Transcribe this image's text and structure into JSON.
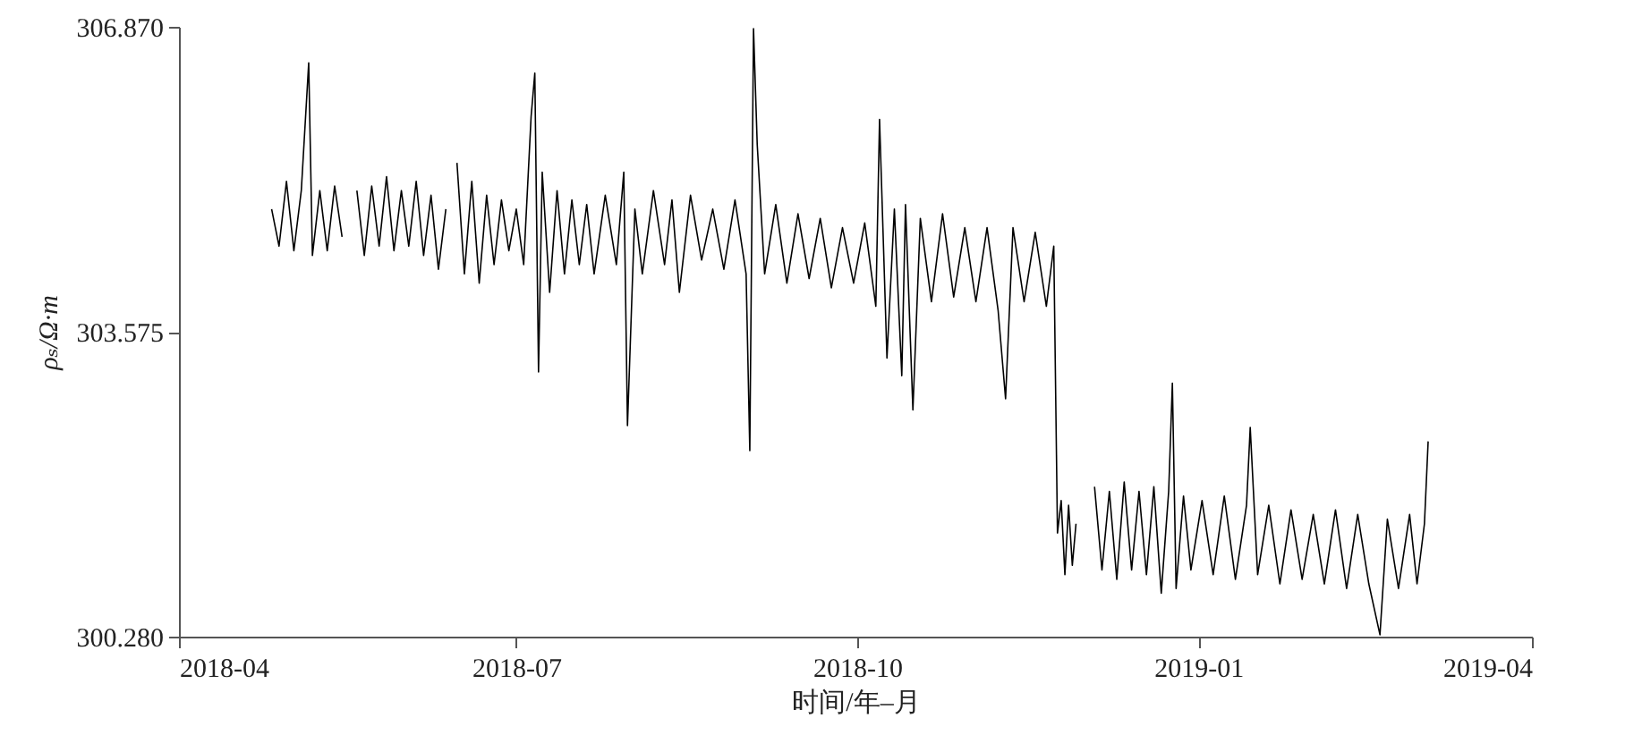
{
  "chart_data": {
    "type": "line",
    "xlabel": "时间/年–月",
    "ylabel": "ρₛ/Ω·m",
    "xlim": [
      "2018-04-01",
      "2019-04-01"
    ],
    "xticks": [
      "2018-04",
      "2018-07",
      "2018-10",
      "2019-01",
      "2019-04"
    ],
    "ylim": [
      300.28,
      306.87
    ],
    "yticks": [
      {
        "value": 300.28,
        "label": "300.280"
      },
      {
        "value": 303.575,
        "label": "303.575"
      },
      {
        "value": 306.87,
        "label": "306.870"
      }
    ],
    "grid": false,
    "marker": "none",
    "line_style": "solid",
    "series": [
      {
        "color": "#000000",
        "x": [
          "2018-04-26",
          "2018-04-28",
          "2018-04-30",
          "2018-05-02",
          "2018-05-04",
          "2018-05-06",
          "2018-05-07",
          "2018-05-09",
          "2018-05-11",
          "2018-05-13",
          "2018-05-15",
          "2018-05-17",
          "2018-05-19",
          "2018-05-21",
          "2018-05-23",
          "2018-05-25",
          "2018-05-27",
          "2018-05-29",
          "2018-05-31",
          "2018-06-02",
          "2018-06-04",
          "2018-06-06",
          "2018-06-08",
          "2018-06-10",
          "2018-06-12",
          "2018-06-13",
          "2018-06-15",
          "2018-06-17",
          "2018-06-19",
          "2018-06-21",
          "2018-06-23",
          "2018-06-25",
          "2018-06-27",
          "2018-06-29",
          "2018-07-01",
          "2018-07-03",
          "2018-07-05",
          "2018-07-06",
          "2018-07-07",
          "2018-07-08",
          "2018-07-10",
          "2018-07-12",
          "2018-07-14",
          "2018-07-16",
          "2018-07-18",
          "2018-07-20",
          "2018-07-22",
          "2018-07-25",
          "2018-07-28",
          "2018-07-30",
          "2018-07-31",
          "2018-08-02",
          "2018-08-04",
          "2018-08-07",
          "2018-08-10",
          "2018-08-12",
          "2018-08-14",
          "2018-08-17",
          "2018-08-20",
          "2018-08-23",
          "2018-08-26",
          "2018-08-29",
          "2018-09-01",
          "2018-09-02",
          "2018-09-03",
          "2018-09-04",
          "2018-09-06",
          "2018-09-09",
          "2018-09-12",
          "2018-09-15",
          "2018-09-18",
          "2018-09-21",
          "2018-09-24",
          "2018-09-27",
          "2018-09-30",
          "2018-10-03",
          "2018-10-06",
          "2018-10-07",
          "2018-10-09",
          "2018-10-11",
          "2018-10-13",
          "2018-10-14",
          "2018-10-16",
          "2018-10-18",
          "2018-10-21",
          "2018-10-24",
          "2018-10-27",
          "2018-10-30",
          "2018-11-02",
          "2018-11-05",
          "2018-11-08",
          "2018-11-10",
          "2018-11-12",
          "2018-11-15",
          "2018-11-18",
          "2018-11-21",
          "2018-11-23",
          "2018-11-24",
          "2018-11-25",
          "2018-11-26",
          "2018-11-27",
          "2018-11-28",
          "2018-11-29",
          "2018-12-01",
          "2018-12-04",
          "2018-12-06",
          "2018-12-08",
          "2018-12-10",
          "2018-12-12",
          "2018-12-14",
          "2018-12-16",
          "2018-12-18",
          "2018-12-20",
          "2018-12-22",
          "2018-12-24",
          "2018-12-25",
          "2018-12-26",
          "2018-12-28",
          "2018-12-30",
          "2019-01-02",
          "2019-01-05",
          "2019-01-08",
          "2019-01-11",
          "2019-01-14",
          "2019-01-15",
          "2019-01-17",
          "2019-01-20",
          "2019-01-23",
          "2019-01-26",
          "2019-01-29",
          "2019-02-01",
          "2019-02-04",
          "2019-02-07",
          "2019-02-10",
          "2019-02-13",
          "2019-02-16",
          "2019-02-19",
          "2019-02-21",
          "2019-02-24",
          "2019-02-27",
          "2019-03-01",
          "2019-03-03",
          "2019-03-04"
        ],
        "values": [
          304.9,
          304.5,
          305.2,
          304.45,
          305.1,
          306.48,
          304.4,
          305.1,
          304.45,
          305.15,
          304.6,
          null,
          305.1,
          304.4,
          305.15,
          304.5,
          305.25,
          304.45,
          305.1,
          304.5,
          305.2,
          304.4,
          305.05,
          304.25,
          304.9,
          null,
          305.4,
          304.2,
          305.2,
          304.1,
          305.05,
          304.3,
          305.0,
          304.45,
          304.9,
          304.3,
          305.9,
          306.37,
          303.14,
          305.3,
          304.0,
          305.1,
          304.2,
          305.0,
          304.3,
          304.95,
          304.2,
          305.05,
          304.3,
          305.3,
          302.56,
          304.9,
          304.2,
          305.1,
          304.3,
          305.0,
          304.0,
          305.05,
          304.35,
          304.9,
          304.25,
          305.0,
          304.2,
          302.29,
          306.85,
          305.6,
          304.2,
          304.95,
          304.1,
          304.85,
          304.15,
          304.8,
          304.05,
          304.7,
          304.1,
          304.75,
          303.85,
          305.87,
          303.29,
          304.9,
          303.1,
          304.95,
          302.73,
          304.8,
          303.9,
          304.85,
          303.95,
          304.7,
          303.9,
          304.7,
          303.8,
          302.85,
          304.7,
          303.9,
          304.65,
          303.85,
          304.5,
          301.4,
          301.75,
          300.95,
          301.7,
          301.05,
          301.5,
          null,
          301.9,
          301.0,
          301.85,
          300.9,
          301.95,
          301.0,
          301.85,
          300.95,
          301.9,
          300.75,
          301.85,
          303.02,
          300.8,
          301.8,
          301.0,
          301.75,
          300.95,
          301.8,
          300.9,
          301.7,
          302.54,
          300.95,
          301.7,
          300.85,
          301.65,
          300.9,
          301.6,
          300.85,
          301.65,
          300.8,
          301.6,
          300.85,
          300.3,
          301.55,
          300.8,
          301.6,
          300.85,
          301.5,
          302.39
        ]
      }
    ]
  }
}
